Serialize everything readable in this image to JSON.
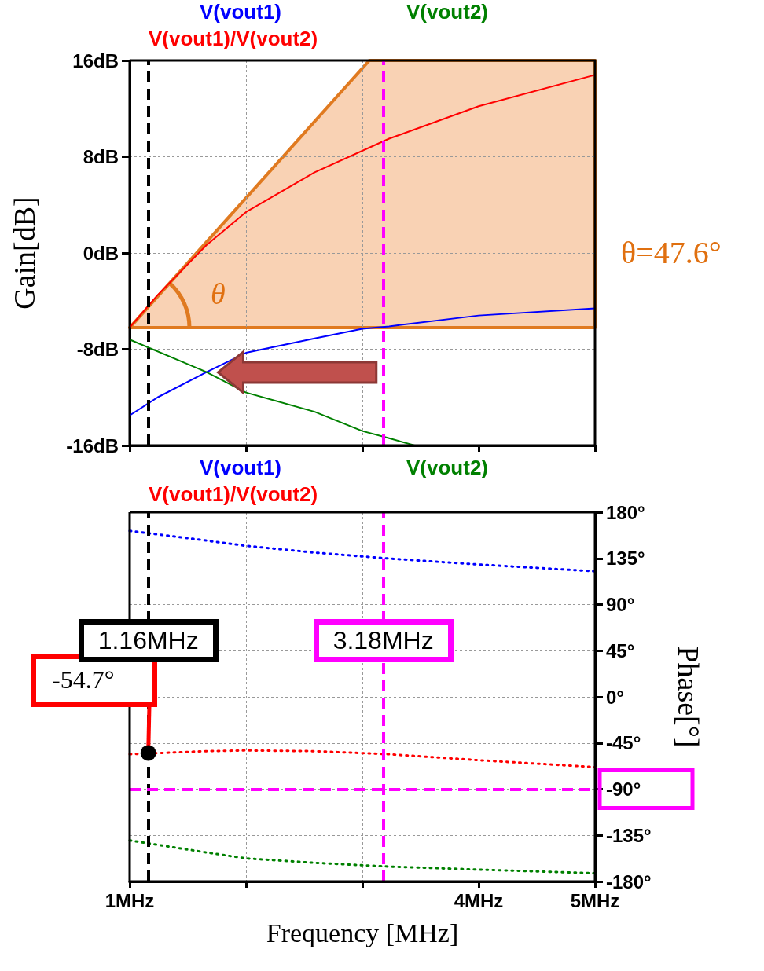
{
  "chart_data": [
    {
      "type": "line",
      "ylabel": "Gain[dB]",
      "xlim": [
        1,
        5
      ],
      "xticks": [
        {
          "value": 1,
          "label": null
        },
        {
          "value": 2,
          "label": null
        },
        {
          "value": 3,
          "label": null
        },
        {
          "value": 4,
          "label": null
        },
        {
          "value": 5,
          "label": null
        }
      ],
      "ylim": [
        -16,
        16
      ],
      "yticks": [
        {
          "value": -16,
          "label": "-16dB"
        },
        {
          "value": -8,
          "label": "-8dB"
        },
        {
          "value": 0,
          "label": "0dB"
        },
        {
          "value": 8,
          "label": "8dB"
        },
        {
          "value": 16,
          "label": "16dB"
        }
      ],
      "tick_labels": "y",
      "grid": true,
      "legend": "top",
      "marker": "none",
      "line_style": "solid",
      "series": [
        {
          "name": "V(vout1)",
          "color": "#0000ff",
          "x": [
            1,
            1.24,
            1.66,
            2.0,
            2.59,
            3.0,
            3.23,
            4.0,
            5.0
          ],
          "values": [
            -13.5,
            -12.0,
            -9.9,
            -8.3,
            -7.1,
            -6.3,
            -6.1,
            -5.2,
            -4.6
          ]
        },
        {
          "name": "V(vout2)",
          "color": "#008000",
          "x": [
            1,
            1.66,
            2.0,
            2.59,
            3.0,
            3.23,
            3.45
          ],
          "values": [
            -7.2,
            -9.9,
            -11.6,
            -13.2,
            -14.8,
            -15.4,
            -16
          ]
        },
        {
          "name": "V(vout1)/V(vout2)",
          "color": "#ff0000",
          "x": [
            1,
            1.24,
            1.66,
            2.0,
            2.59,
            3.23,
            4.0,
            5.0
          ],
          "values": [
            -6.2,
            -3.5,
            0.65,
            3.4,
            6.7,
            9.5,
            12.2,
            14.8
          ]
        }
      ],
      "ref_lines": [
        {
          "axis": "x",
          "value": 1.16,
          "color": "#000000",
          "line_style": "dashed"
        },
        {
          "axis": "x",
          "value": 3.18,
          "color": "#ff00ff",
          "line_style": "dashed"
        }
      ],
      "annotations": [
        "θ",
        "θ=47.6°"
      ]
    },
    {
      "type": "line",
      "ylabel": "Phase[°]",
      "xlabel": "Frequency [MHz]",
      "xlim": [
        1,
        5
      ],
      "xticks": [
        {
          "value": 1,
          "label": "1MHz"
        },
        {
          "value": 2,
          "label": null
        },
        {
          "value": 3,
          "label": null
        },
        {
          "value": 4,
          "label": "4MHz"
        },
        {
          "value": 5,
          "label": "5MHz"
        }
      ],
      "ylim": [
        -180,
        180
      ],
      "yticks": [
        {
          "value": -180,
          "label": "-180°"
        },
        {
          "value": -135,
          "label": "-135°"
        },
        {
          "value": -90,
          "label": "-90°"
        },
        {
          "value": -45,
          "label": "-45°"
        },
        {
          "value": 0,
          "label": "0°"
        },
        {
          "value": 45,
          "label": "45°"
        },
        {
          "value": 90,
          "label": "90°"
        },
        {
          "value": 135,
          "label": "135°"
        },
        {
          "value": 180,
          "label": "180°"
        }
      ],
      "grid": true,
      "legend": "top",
      "marker": "none",
      "line_style": "dotted",
      "series": [
        {
          "name": "V(vout1)",
          "color": "#0000ff",
          "x": [
            1,
            1.66,
            2.0,
            2.59,
            3.23,
            4.0,
            5.0
          ],
          "values": [
            161.8,
            152.3,
            147.2,
            140.6,
            134.8,
            129,
            122.4
          ]
        },
        {
          "name": "V(vout2)",
          "color": "#008000",
          "x": [
            1,
            1.66,
            2.0,
            2.59,
            3.23,
            4.0,
            5.0
          ],
          "values": [
            -140,
            -151.7,
            -157.5,
            -161.8,
            -165.5,
            -168.4,
            -172
          ]
        },
        {
          "name": "V(vout1)/V(vout2)",
          "color": "#ff0000",
          "x": [
            1,
            1.66,
            2.0,
            2.59,
            3.23,
            4.0,
            5.0
          ],
          "values": [
            -56,
            -53,
            -52.3,
            -53,
            -56,
            -61.8,
            -68.5
          ]
        }
      ],
      "ref_lines": [
        {
          "axis": "x",
          "value": 1.16,
          "label": "1.16MHz",
          "color": "#000000",
          "line_style": "dashed"
        },
        {
          "axis": "x",
          "value": 3.18,
          "label": "3.18MHz",
          "color": "#ff00ff",
          "line_style": "dashed"
        },
        {
          "axis": "y",
          "value": -90,
          "color": "#ff00ff",
          "line_style": "dashed"
        }
      ],
      "annotations": [
        {
          "text": "-54.7°",
          "x": 1.16,
          "y": -54.7
        }
      ]
    }
  ]
}
